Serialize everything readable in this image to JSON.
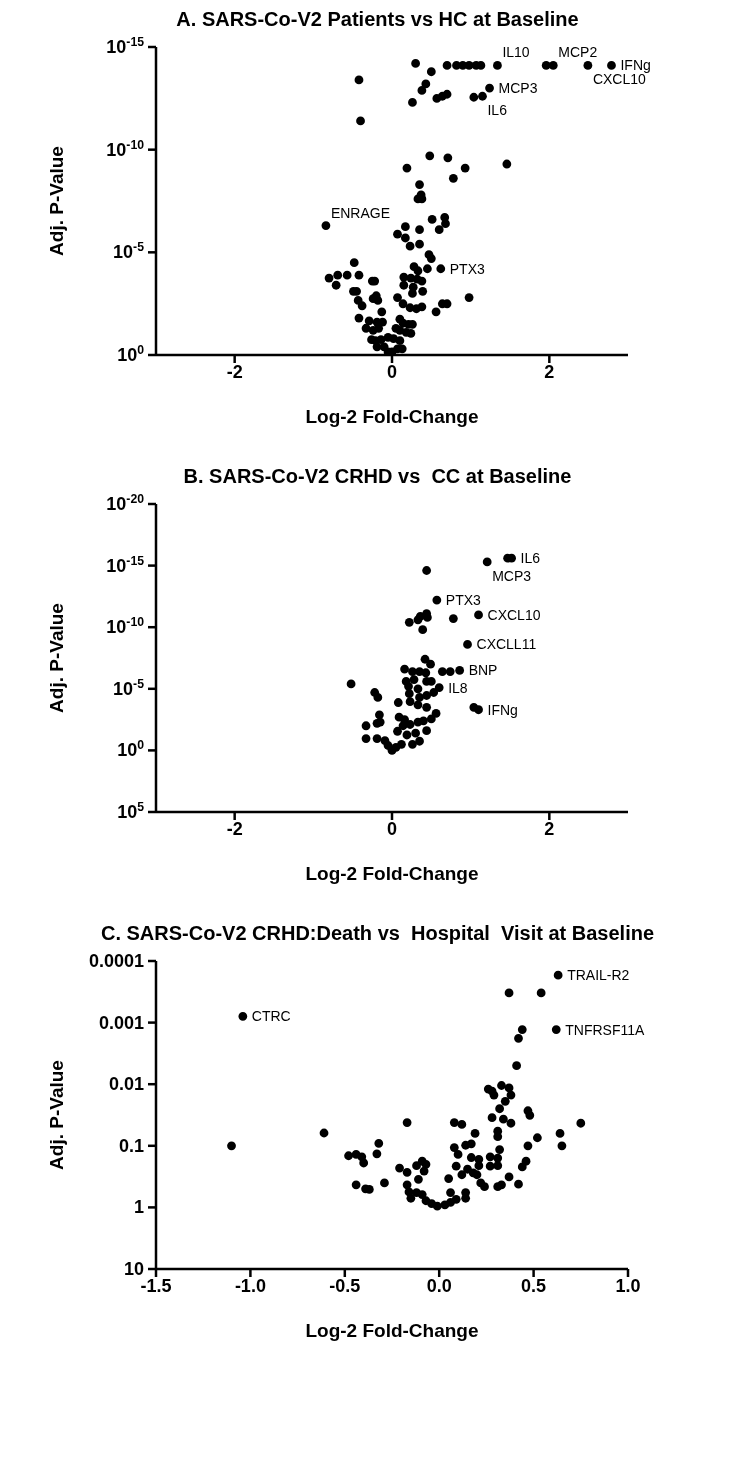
{
  "chart_data": [
    {
      "type": "scatter",
      "title": "A. SARS-Co-V2 Patients vs HC at Baseline",
      "xlabel": "Log-2 Fold-Change",
      "ylabel": "Adj. P-Value",
      "color": "#000000",
      "marker": "circle",
      "log": "y",
      "xlim": [
        -3,
        3
      ],
      "xticks": [
        -2,
        0,
        2
      ],
      "ylim": [
        1,
        1e-15
      ],
      "yticks": [
        {
          "value": 1e-15,
          "label": "10$^{-15}$"
        },
        {
          "value": 1e-10,
          "label": "10$^{-10}$"
        },
        {
          "value": 1e-05,
          "label": "10$^{-5}$"
        },
        {
          "value": 1,
          "label": "10$^{0}$"
        }
      ],
      "x": [
        0.3,
        0.7,
        0.82,
        0.9,
        0.98,
        1.07,
        1.13,
        1.34,
        1.96,
        2.05,
        2.49,
        2.79,
        0.5,
        -0.42,
        0.43,
        0.38,
        1.24,
        0.57,
        0.64,
        0.7,
        0.26,
        1.04,
        1.15,
        -0.4,
        0.48,
        0.71,
        0.19,
        0.93,
        1.46,
        0.78,
        0.35,
        0.37,
        0.33,
        0.38,
        0.51,
        0.67,
        0.68,
        0.6,
        -0.84,
        0.17,
        0.35,
        0.07,
        0.17,
        0.23,
        0.35,
        0.47,
        0.5,
        -0.48,
        0.28,
        0.33,
        0.45,
        0.62,
        -0.8,
        -0.69,
        -0.57,
        -0.42,
        -0.71,
        -0.25,
        -0.22,
        0.15,
        0.24,
        0.32,
        0.38,
        0.15,
        0.27,
        0.39,
        -0.49,
        -0.45,
        -0.2,
        -0.24,
        -0.18,
        0.07,
        0.26,
        0.98,
        -0.43,
        -0.38,
        0.14,
        0.23,
        0.31,
        0.38,
        0.64,
        0.7,
        0.56,
        -0.13,
        -0.42,
        -0.29,
        -0.19,
        -0.12,
        -0.33,
        -0.24,
        -0.17,
        0.1,
        0.14,
        0.21,
        0.26,
        0.05,
        0.1,
        0.18,
        0.24,
        -0.26,
        -0.21,
        -0.14,
        -0.05,
        0.02,
        0.1,
        -0.19,
        -0.1,
        0,
        0.07,
        0.13,
        -0.05
      ],
      "values": [
        6.3e-15,
        7.9e-15,
        7.9e-15,
        7.9e-15,
        7.9e-15,
        7.9e-15,
        7.9e-15,
        7.9e-15,
        7.9e-15,
        7.9e-15,
        7.9e-15,
        7.9e-15,
        1.6e-14,
        4e-14,
        6.3e-14,
        1.3e-13,
        1e-13,
        3.2e-13,
        2.5e-13,
        2e-13,
        5e-13,
        2.8e-13,
        2.5e-13,
        4e-12,
        2e-10,
        2.5e-10,
        7.9e-10,
        7.9e-10,
        5e-10,
        2.5e-09,
        5e-09,
        1.6e-08,
        2.5e-08,
        2.5e-08,
        2.5e-07,
        2e-07,
        4e-07,
        7.9e-07,
        5e-07,
        5.6e-07,
        7.9e-07,
        1.3e-06,
        2e-06,
        5e-06,
        4e-06,
        1.3e-05,
        2e-05,
        3.2e-05,
        5e-05,
        7.9e-05,
        6.3e-05,
        6.3e-05,
        0.00018,
        0.00013,
        0.00013,
        0.00013,
        0.0004,
        0.00025,
        0.00025,
        0.00016,
        0.00018,
        0.0002,
        0.00025,
        0.0004,
        0.0005,
        0.00079,
        0.00079,
        0.00079,
        0.0013,
        0.0018,
        0.0022,
        0.0016,
        0.001,
        0.0016,
        0.0022,
        0.004,
        0.0032,
        0.005,
        0.0056,
        0.0045,
        0.0032,
        0.0032,
        0.0079,
        0.0079,
        0.016,
        0.022,
        0.025,
        0.025,
        0.05,
        0.063,
        0.05,
        0.018,
        0.028,
        0.032,
        0.032,
        0.05,
        0.063,
        0.079,
        0.089,
        0.18,
        0.2,
        0.18,
        0.14,
        0.16,
        0.2,
        0.4,
        0.4,
        0.71,
        0.5,
        0.5,
        0.71
      ],
      "annotations": [
        {
          "text": "IL10",
          "x": 1.34,
          "y": 7.9e-15
        },
        {
          "text": "MCP2",
          "x": 2.05,
          "y": 7.9e-15
        },
        {
          "text": "CXCL10",
          "x": 2.49,
          "y": 7.9e-15
        },
        {
          "text": "IFNg",
          "x": 2.79,
          "y": 7.9e-15
        },
        {
          "text": "MCP3",
          "x": 1.24,
          "y": 1e-13
        },
        {
          "text": "IL6",
          "x": 1.15,
          "y": 2.5e-13
        },
        {
          "text": "ENRAGE",
          "x": -0.84,
          "y": 5e-07
        },
        {
          "text": "PTX3",
          "x": 0.62,
          "y": 6.3e-05
        }
      ]
    },
    {
      "type": "scatter",
      "title": "B. SARS-Co-V2 CRHD vs  CC at Baseline",
      "xlabel": "Log-2 Fold-Change",
      "ylabel": "Adj. P-Value",
      "color": "#000000",
      "marker": "circle",
      "log": "y",
      "xlim": [
        -3,
        3
      ],
      "xticks": [
        -2,
        0,
        2
      ],
      "ylim": [
        100000.0,
        1e-20
      ],
      "yticks": [
        {
          "value": 1e-20,
          "label": "10$^{-20}$"
        },
        {
          "value": 1e-15,
          "label": "10$^{-15}$"
        },
        {
          "value": 1e-10,
          "label": "10$^{-10}$"
        },
        {
          "value": 1e-05,
          "label": "10$^{-5}$"
        },
        {
          "value": 1,
          "label": "10$^{0}$"
        },
        {
          "value": 100000.0,
          "label": "10$^{5}$"
        }
      ],
      "x": [
        1.47,
        1.52,
        1.21,
        0.44,
        0.57,
        1.1,
        0.78,
        0.22,
        0.33,
        0.36,
        0.44,
        0.45,
        0.39,
        0.96,
        0.42,
        0.49,
        0.64,
        0.74,
        0.86,
        0.16,
        0.26,
        0.35,
        0.43,
        0.18,
        0.28,
        0.44,
        0.5,
        -0.52,
        0.6,
        0.53,
        0.21,
        0.33,
        0.22,
        0.35,
        0.44,
        -0.22,
        -0.18,
        1.04,
        1.1,
        0.08,
        0.23,
        0.33,
        0.44,
        0.56,
        0.5,
        -0.16,
        -0.15,
        -0.19,
        -0.33,
        -0.33,
        0.09,
        0.16,
        0.14,
        0.23,
        0.33,
        0.4,
        0.07,
        0.19,
        0.3,
        0.44,
        0.26,
        0.35,
        -0.19,
        -0.09,
        -0.05,
        0,
        0.05,
        0.12
      ],
      "values": [
        2.5e-16,
        2.5e-16,
        5e-16,
        2.5e-15,
        6.3e-13,
        1e-11,
        2e-11,
        4e-11,
        2.5e-11,
        1.3e-11,
        7.9e-12,
        1.6e-11,
        1.6e-10,
        2.5e-09,
        4e-08,
        1e-07,
        4e-07,
        4e-07,
        3.2e-07,
        2.5e-07,
        4e-07,
        4e-07,
        5e-07,
        2.5e-06,
        1.8e-06,
        2.5e-06,
        2.5e-06,
        4e-06,
        7.9e-06,
        2e-05,
        6.3e-06,
        1e-05,
        2.5e-05,
        5e-05,
        3.5e-05,
        2e-05,
        5e-05,
        0.00032,
        0.0005,
        0.00013,
        0.00011,
        0.0002,
        0.00032,
        0.001,
        0.0028,
        0.0013,
        0.005,
        0.0063,
        0.01,
        0.11,
        0.002,
        0.0032,
        0.01,
        0.0079,
        0.005,
        0.004,
        0.028,
        0.056,
        0.04,
        0.025,
        0.32,
        0.18,
        0.11,
        0.16,
        0.4,
        1,
        0.56,
        0.32
      ],
      "annotations": [
        {
          "text": "IL6",
          "x": 1.52,
          "y": 2.5e-16
        },
        {
          "text": "MCP3",
          "x": 1.21,
          "y": 5e-16
        },
        {
          "text": "PTX3",
          "x": 0.57,
          "y": 6.3e-13
        },
        {
          "text": "CXCL10",
          "x": 1.1,
          "y": 1e-11
        },
        {
          "text": "CXCLL11",
          "x": 0.96,
          "y": 2.5e-09
        },
        {
          "text": "BNP",
          "x": 0.86,
          "y": 3.2e-07
        },
        {
          "text": "IL8",
          "x": 0.6,
          "y": 7.9e-06
        },
        {
          "text": "IFNg",
          "x": 1.1,
          "y": 0.0005
        }
      ]
    },
    {
      "type": "scatter",
      "title": "C. SARS-Co-V2 CRHD:Death vs  Hospital  Visit at Baseline",
      "xlabel": "Log-2 Fold-Change",
      "ylabel": "Adj. P-Value",
      "color": "#000000",
      "marker": "circle",
      "log": "y",
      "xlim": [
        -1.5,
        1
      ],
      "xticks": [
        -1.5,
        {
          "value": -1,
          "label": "-1.0"
        },
        -0.5,
        {
          "value": 0,
          "label": "0.0"
        },
        0.5,
        {
          "value": 1,
          "label": "1.0"
        }
      ],
      "ylim": [
        10,
        0.0001
      ],
      "yticks": [
        0.0001,
        0.001,
        0.01,
        0.1,
        1,
        10
      ],
      "x": [
        -1.04,
        0.63,
        0.37,
        0.54,
        0.44,
        0.42,
        0.62,
        0.41,
        0.26,
        0.28,
        0.29,
        0.33,
        0.37,
        0.35,
        0.38,
        0.32,
        0.28,
        0.34,
        0.38,
        0.47,
        0.48,
        -0.17,
        0.08,
        0.12,
        0.75,
        -0.61,
        0.19,
        0.31,
        0.31,
        0.52,
        0.64,
        0.65,
        -1.1,
        -0.32,
        -0.33,
        0.47,
        0.17,
        0.14,
        0.08,
        0.1,
        0.32,
        -0.48,
        -0.44,
        -0.41,
        -0.4,
        0.46,
        0.44,
        0.17,
        0.21,
        0.27,
        0.31,
        0.21,
        0.27,
        0.31,
        0.09,
        -0.29,
        -0.44,
        -0.39,
        -0.37,
        -0.21,
        -0.17,
        -0.12,
        -0.09,
        -0.07,
        -0.08,
        -0.11,
        0.05,
        0.12,
        0.15,
        0.18,
        0.2,
        0.22,
        0.24,
        0.31,
        0.33,
        0.37,
        0.42,
        -0.17,
        -0.16,
        -0.15,
        -0.12,
        -0.09,
        -0.07,
        -0.04,
        -0.01,
        0.03,
        0.06,
        0.09,
        0.14,
        0.14,
        0.06
      ],
      "values": [
        0.00079,
        0.00017,
        0.00033,
        0.00033,
        0.0013,
        0.0018,
        0.0013,
        0.005,
        0.012,
        0.013,
        0.015,
        0.0105,
        0.0115,
        0.019,
        0.015,
        0.025,
        0.035,
        0.037,
        0.043,
        0.027,
        0.032,
        0.042,
        0.042,
        0.045,
        0.043,
        0.062,
        0.063,
        0.058,
        0.071,
        0.074,
        0.063,
        0.1,
        0.1,
        0.091,
        0.135,
        0.1,
        0.093,
        0.098,
        0.107,
        0.138,
        0.115,
        0.145,
        0.138,
        0.151,
        0.19,
        0.178,
        0.22,
        0.155,
        0.166,
        0.151,
        0.158,
        0.21,
        0.214,
        0.21,
        0.214,
        0.4,
        0.43,
        0.5,
        0.51,
        0.23,
        0.27,
        0.21,
        0.178,
        0.2,
        0.257,
        0.35,
        0.34,
        0.295,
        0.24,
        0.275,
        0.295,
        0.4,
        0.46,
        0.46,
        0.43,
        0.32,
        0.42,
        0.43,
        0.56,
        0.71,
        0.575,
        0.62,
        0.78,
        0.87,
        0.955,
        0.91,
        0.83,
        0.74,
        0.71,
        0.575,
        0.575
      ],
      "annotations": [
        {
          "text": "CTRC",
          "x": -1.04,
          "y": 0.00079
        },
        {
          "text": "TRAIL-R2",
          "x": 0.63,
          "y": 0.00017
        },
        {
          "text": "TNFRSF11A",
          "x": 0.62,
          "y": 0.0013
        }
      ]
    }
  ]
}
